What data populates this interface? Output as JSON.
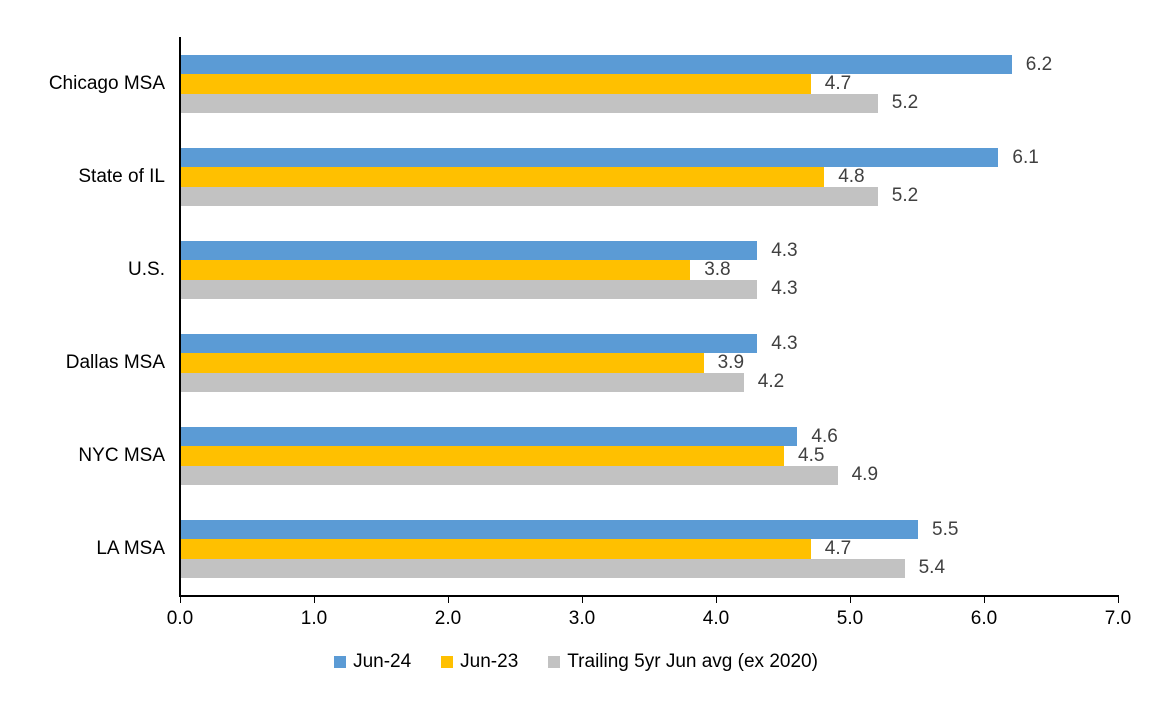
{
  "chart_data": {
    "type": "bar",
    "orientation": "horizontal",
    "title": "",
    "categories": [
      "Chicago MSA",
      "State of IL",
      "U.S.",
      "Dallas MSA",
      "NYC MSA",
      "LA MSA"
    ],
    "series": [
      {
        "name": "Jun-24",
        "color": "#5B9BD5",
        "values": [
          6.2,
          6.1,
          4.3,
          4.3,
          4.6,
          5.5
        ]
      },
      {
        "name": "Jun-23",
        "color": "#FFC000",
        "values": [
          4.7,
          4.8,
          3.8,
          3.9,
          4.5,
          4.7
        ]
      },
      {
        "name": "Trailing 5yr Jun avg (ex 2020)",
        "color": "#C2C2C2",
        "values": [
          5.2,
          5.2,
          4.3,
          4.2,
          4.9,
          5.4
        ]
      }
    ],
    "x_axis": {
      "min": 0,
      "max": 7,
      "tick_labels": [
        "0.0",
        "1.0",
        "2.0",
        "3.0",
        "4.0",
        "5.0",
        "6.0",
        "7.0"
      ]
    },
    "data_labels_shown": true,
    "data_label_color": "#404040",
    "axis_color": "#000000",
    "grid": false,
    "legend_position": "bottom"
  }
}
